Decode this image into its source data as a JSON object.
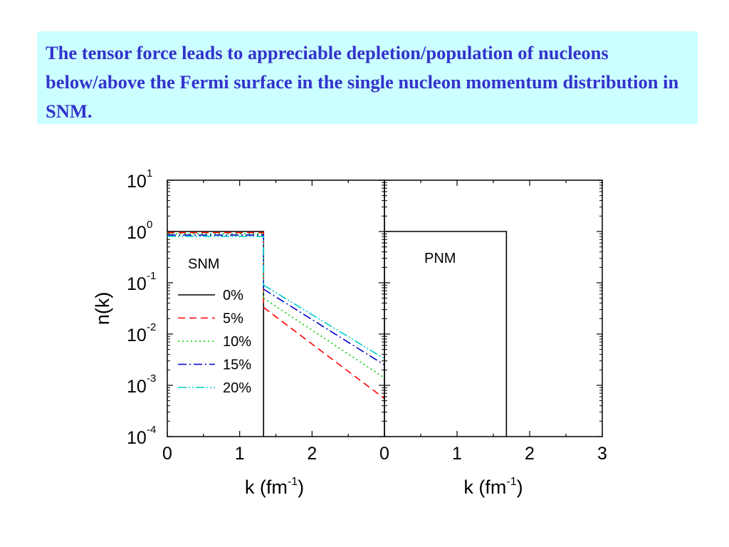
{
  "caption": {
    "text": "The tensor force leads to appreciable depletion/population of nucleons below/above the Fermi surface in the single nucleon momentum distribution in SNM.",
    "background": "#ccffff",
    "color": "#3333cc"
  },
  "chart_data": {
    "type": "line",
    "yscale": "log",
    "ylabel": "n(k)",
    "ylim": [
      0.0001,
      10
    ],
    "y_ticks": [
      {
        "base": "10",
        "exp": "1"
      },
      {
        "base": "10",
        "exp": "0"
      },
      {
        "base": "10",
        "exp": "-1"
      },
      {
        "base": "10",
        "exp": "-2"
      },
      {
        "base": "10",
        "exp": "-3"
      },
      {
        "base": "10",
        "exp": "-4"
      }
    ],
    "xlabel": "k (fm",
    "xlabel_exp": "-1",
    "xlabel_close": ")",
    "grid": false,
    "panels": [
      {
        "label": "SNM",
        "xlim": [
          0,
          3
        ],
        "x_ticks": [
          "0",
          "1",
          "2"
        ],
        "legend": {
          "placement": "left"
        },
        "series": [
          {
            "name": "0%",
            "color": "#000000",
            "dash": "solid",
            "kF": 1.33,
            "n_below": 1.0,
            "high_k": null
          },
          {
            "name": "5%",
            "color": "#ff0000",
            "dash": "dashed",
            "kF": 1.33,
            "n_below": 0.95,
            "high_k": [
              [
                1.33,
                0.033
              ],
              [
                3.0,
                0.00055
              ]
            ]
          },
          {
            "name": "10%",
            "color": "#00cc00",
            "dash": "dotted",
            "kF": 1.33,
            "n_below": 0.9,
            "high_k": [
              [
                1.33,
                0.05
              ],
              [
                3.0,
                0.0014
              ]
            ]
          },
          {
            "name": "15%",
            "color": "#0000cc",
            "dash": "dashdot",
            "kF": 1.33,
            "n_below": 0.85,
            "high_k": [
              [
                1.33,
                0.075
              ],
              [
                3.0,
                0.0025
              ]
            ]
          },
          {
            "name": "20%",
            "color": "#00cccc",
            "dash": "dashdotdot",
            "kF": 1.33,
            "n_below": 0.8,
            "high_k": [
              [
                1.33,
                0.09
              ],
              [
                3.0,
                0.0033
              ]
            ]
          }
        ]
      },
      {
        "label": "PNM",
        "xlim": [
          0,
          3
        ],
        "x_ticks": [
          "0",
          "1",
          "2",
          "3"
        ],
        "series": [
          {
            "color": "#000000",
            "dash": "solid",
            "kF": 1.68,
            "n_below": 1.0,
            "high_k": null
          }
        ]
      }
    ]
  }
}
